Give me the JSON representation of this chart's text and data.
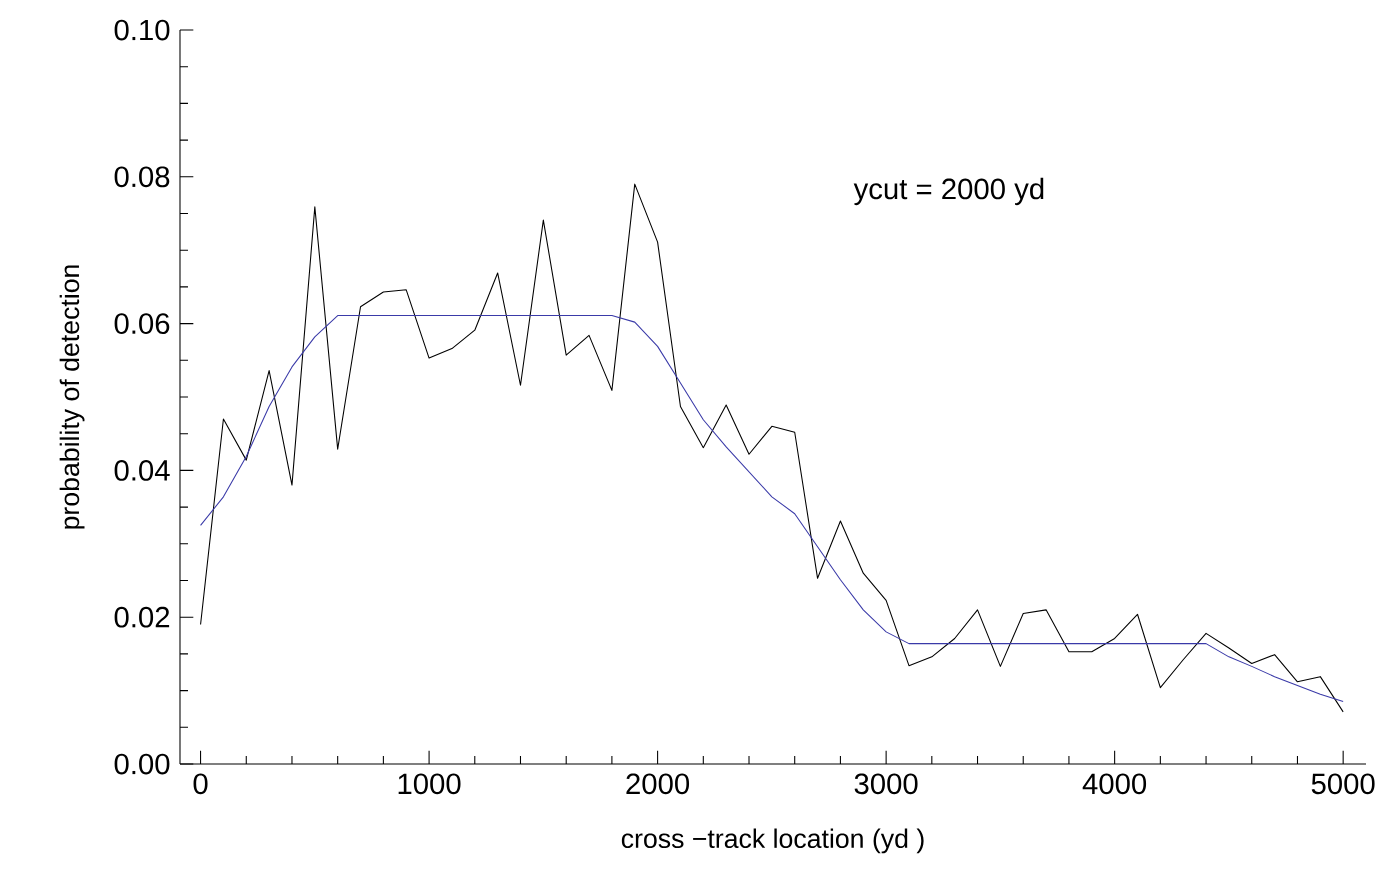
{
  "chart_data": {
    "type": "line",
    "xlabel": "cross −track location    (yd )",
    "ylabel": "probability of detection",
    "annotations": [
      "ycut  = 2000 yd"
    ],
    "xlim": [
      -90,
      5100
    ],
    "ylim": [
      0,
      0.1
    ],
    "xticks": [
      0,
      1000,
      2000,
      3000,
      4000,
      5000
    ],
    "yticks": [
      {
        "value": 0,
        "label": "0.00"
      },
      {
        "value": 0.02,
        "label": "0.02"
      },
      {
        "value": 0.04,
        "label": "0.04"
      },
      {
        "value": 0.06,
        "label": "0.06"
      },
      {
        "value": 0.08,
        "label": "0.08"
      },
      {
        "value": 0.1,
        "label": "0.10"
      }
    ],
    "grid": false,
    "marker": "none",
    "line_style": "solid",
    "series": [
      {
        "color": "#000000",
        "x": [
          0,
          100,
          200,
          300,
          400,
          500,
          600,
          700,
          800,
          900,
          1000,
          1100,
          1200,
          1300,
          1400,
          1500,
          1600,
          1700,
          1800,
          1900,
          2000,
          2100,
          2200,
          2300,
          2400,
          2500,
          2600,
          2700,
          2800,
          2900,
          3000,
          3100,
          3200,
          3300,
          3400,
          3500,
          3600,
          3700,
          3800,
          3900,
          4000,
          4100,
          4200,
          4300,
          4400,
          4500,
          4600,
          4700,
          4800,
          4900,
          5000
        ],
        "values": [
          0.019,
          0.047,
          0.0414,
          0.0536,
          0.038,
          0.0759,
          0.0429,
          0.0623,
          0.0643,
          0.0646,
          0.0553,
          0.0566,
          0.0591,
          0.0669,
          0.0516,
          0.0741,
          0.0557,
          0.0584,
          0.0509,
          0.079,
          0.0711,
          0.0487,
          0.0431,
          0.0489,
          0.0422,
          0.046,
          0.0452,
          0.0253,
          0.0331,
          0.026,
          0.0223,
          0.0134,
          0.0146,
          0.0171,
          0.021,
          0.0133,
          0.0205,
          0.021,
          0.0153,
          0.0153,
          0.0171,
          0.0204,
          0.0104,
          0.0142,
          0.0178,
          0.0158,
          0.0137,
          0.0149,
          0.0112,
          0.0119,
          0.0071
        ]
      },
      {
        "color": "#3a3aa8",
        "x": [
          0,
          100,
          200,
          300,
          400,
          500,
          600,
          1800,
          1900,
          2000,
          2100,
          2200,
          2300,
          2500,
          2600,
          2700,
          2800,
          2900,
          3000,
          3100,
          4400,
          4500,
          4600,
          4700,
          4800,
          4900,
          5000
        ],
        "values": [
          0.0325,
          0.0364,
          0.0419,
          0.0487,
          0.0541,
          0.0582,
          0.0611,
          0.0611,
          0.0602,
          0.0569,
          0.0519,
          0.0469,
          0.0432,
          0.0364,
          0.0341,
          0.0296,
          0.0251,
          0.021,
          0.018,
          0.0164,
          0.0164,
          0.0146,
          0.0133,
          0.0119,
          0.0107,
          0.0095,
          0.0085
        ]
      }
    ]
  }
}
